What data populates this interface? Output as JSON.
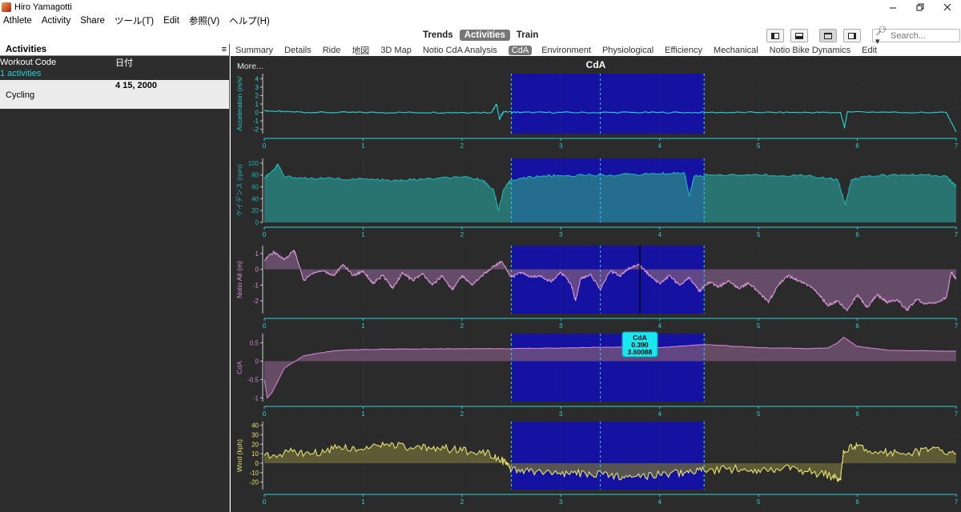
{
  "window": {
    "title": "Hiro Yamagotti",
    "icon": "app-logo-icon",
    "controls": [
      "minimize-icon",
      "restore-icon",
      "close-icon"
    ]
  },
  "menu": [
    "Athlete",
    "Activity",
    "Share",
    "ツール(T)",
    "Edit",
    "参照(V)",
    "ヘルプ(H)"
  ],
  "views": {
    "tabs": [
      "Trends",
      "Activities",
      "Train"
    ],
    "active": "Activities"
  },
  "toolbar": {
    "buttons": [
      "sidebar-toggle-icon",
      "bottom-panel-icon",
      "tile-view-icon",
      "tab-view-icon"
    ],
    "search_placeholder": "Search...",
    "search_icon": "search-icon"
  },
  "sidebar": {
    "title": "Activities",
    "menu_glyph": "≡",
    "col_workout": "Workout Code",
    "col_date": "日付",
    "count": "1 activities",
    "row": {
      "date": "4 15, 2000",
      "sport": "Cycling"
    }
  },
  "chart_tabs": {
    "items": [
      "Summary",
      "Details",
      "Ride",
      "地図",
      "3D Map",
      "Notio CdA Analysis",
      "CdA",
      "Environment",
      "Physiological",
      "Efficiency",
      "Mechanical",
      "Notio Bike Dynamics",
      "Edit"
    ],
    "active": "CdA"
  },
  "chart": {
    "more": "More...",
    "title": "CdA",
    "tooltip": {
      "line1": "CdA",
      "line2": "0.390",
      "line3": "3.60088"
    }
  },
  "chart_data": {
    "type": "area",
    "x_range": [
      0,
      7
    ],
    "x_ticks": [
      0,
      1,
      2,
      3,
      4,
      5,
      6,
      7
    ],
    "selection": {
      "start": 2.5,
      "end": 4.45,
      "markers": [
        2.5,
        3.4,
        4.45
      ]
    },
    "cursor_x": 3.8,
    "series": [
      {
        "name": "Acceleration (m/s/",
        "ylim": [
          -2.5,
          4.6
        ],
        "y_ticks": [
          4,
          3,
          2,
          1,
          0,
          -1,
          -2
        ],
        "color": "#2ad4d4",
        "fill": false,
        "points": [
          [
            0,
            0.2
          ],
          [
            0.2,
            0.1
          ],
          [
            0.5,
            0.0
          ],
          [
            1.0,
            0.0
          ],
          [
            1.5,
            0.0
          ],
          [
            2.0,
            0.0
          ],
          [
            2.3,
            0.0
          ],
          [
            2.35,
            1.0
          ],
          [
            2.38,
            -0.8
          ],
          [
            2.42,
            0.1
          ],
          [
            2.6,
            0.0
          ],
          [
            3.0,
            0.0
          ],
          [
            3.5,
            0.0
          ],
          [
            4.0,
            0.0
          ],
          [
            4.5,
            0.0
          ],
          [
            5.0,
            0.0
          ],
          [
            5.5,
            0.0
          ],
          [
            5.83,
            0.0
          ],
          [
            5.87,
            -1.8
          ],
          [
            5.9,
            0.1
          ],
          [
            6.5,
            0.0
          ],
          [
            6.9,
            0.0
          ],
          [
            7.0,
            -2.3
          ]
        ]
      },
      {
        "name": "ケイデンス (rpm)",
        "ylim": [
          0,
          108
        ],
        "y_ticks": [
          100,
          80,
          60,
          40,
          20,
          0
        ],
        "color": "#20b4b4",
        "fill": true,
        "fill_color": "#2a8c88",
        "points": [
          [
            0,
            75
          ],
          [
            0.1,
            90
          ],
          [
            0.14,
            98
          ],
          [
            0.2,
            77
          ],
          [
            0.5,
            74
          ],
          [
            1.0,
            73
          ],
          [
            1.3,
            70
          ],
          [
            1.6,
            73
          ],
          [
            2.0,
            76
          ],
          [
            2.2,
            72
          ],
          [
            2.32,
            55
          ],
          [
            2.37,
            20
          ],
          [
            2.42,
            55
          ],
          [
            2.5,
            72
          ],
          [
            2.8,
            78
          ],
          [
            3.0,
            79
          ],
          [
            3.5,
            80
          ],
          [
            4.0,
            82
          ],
          [
            4.25,
            84
          ],
          [
            4.3,
            45
          ],
          [
            4.35,
            78
          ],
          [
            4.5,
            80
          ],
          [
            5.0,
            80
          ],
          [
            5.5,
            79
          ],
          [
            5.8,
            72
          ],
          [
            5.88,
            30
          ],
          [
            5.94,
            72
          ],
          [
            6.1,
            78
          ],
          [
            6.5,
            80
          ],
          [
            6.9,
            78
          ],
          [
            7.0,
            60
          ]
        ]
      },
      {
        "name": "Notio Alt (m)",
        "ylim": [
          -2.8,
          1.5
        ],
        "y_ticks": [
          1.0,
          0.0,
          -1.0,
          -2.0
        ],
        "color": "#d898d8",
        "fill": true,
        "fill_color": "#7a5a80",
        "points": [
          [
            0,
            0.6
          ],
          [
            0.1,
            1.1
          ],
          [
            0.2,
            0.6
          ],
          [
            0.3,
            1.2
          ],
          [
            0.32,
            0.9
          ],
          [
            0.4,
            -0.7
          ],
          [
            0.5,
            -0.2
          ],
          [
            0.6,
            -0.1
          ],
          [
            0.7,
            -0.4
          ],
          [
            0.8,
            0.3
          ],
          [
            0.9,
            -0.4
          ],
          [
            1.0,
            -0.1
          ],
          [
            1.1,
            -0.9
          ],
          [
            1.2,
            -0.4
          ],
          [
            1.3,
            -1.2
          ],
          [
            1.4,
            -0.2
          ],
          [
            1.5,
            -0.7
          ],
          [
            1.6,
            -0.3
          ],
          [
            1.7,
            -1.0
          ],
          [
            1.8,
            -0.4
          ],
          [
            1.9,
            -1.3
          ],
          [
            2.0,
            -0.4
          ],
          [
            2.1,
            -1.0
          ],
          [
            2.2,
            -0.4
          ],
          [
            2.3,
            0.1
          ],
          [
            2.4,
            0.5
          ],
          [
            2.5,
            -0.5
          ],
          [
            2.6,
            -0.2
          ],
          [
            2.7,
            -0.5
          ],
          [
            2.8,
            -0.4
          ],
          [
            2.9,
            -0.8
          ],
          [
            3.0,
            -0.2
          ],
          [
            3.1,
            -0.9
          ],
          [
            3.15,
            -2.0
          ],
          [
            3.2,
            -0.6
          ],
          [
            3.3,
            -0.3
          ],
          [
            3.4,
            -1.3
          ],
          [
            3.5,
            -0.1
          ],
          [
            3.6,
            -0.4
          ],
          [
            3.7,
            0.1
          ],
          [
            3.8,
            0.3
          ],
          [
            3.9,
            -0.4
          ],
          [
            4.0,
            -0.9
          ],
          [
            4.1,
            -0.4
          ],
          [
            4.2,
            -1.0
          ],
          [
            4.3,
            -0.5
          ],
          [
            4.4,
            -1.4
          ],
          [
            4.5,
            -0.8
          ],
          [
            4.6,
            -1.1
          ],
          [
            4.7,
            -0.7
          ],
          [
            4.8,
            -1.2
          ],
          [
            4.9,
            -0.9
          ],
          [
            5.0,
            -1.4
          ],
          [
            5.1,
            -2.1
          ],
          [
            5.2,
            -1.0
          ],
          [
            5.3,
            -0.4
          ],
          [
            5.4,
            -0.7
          ],
          [
            5.5,
            -1.0
          ],
          [
            5.6,
            -1.5
          ],
          [
            5.7,
            -2.3
          ],
          [
            5.8,
            -2.0
          ],
          [
            5.9,
            -2.6
          ],
          [
            6.0,
            -1.6
          ],
          [
            6.1,
            -2.4
          ],
          [
            6.2,
            -1.6
          ],
          [
            6.3,
            -2.1
          ],
          [
            6.4,
            -1.9
          ],
          [
            6.5,
            -2.6
          ],
          [
            6.6,
            -1.9
          ],
          [
            6.7,
            -2.2
          ],
          [
            6.8,
            -2.1
          ],
          [
            6.9,
            -1.8
          ],
          [
            6.95,
            -0.2
          ],
          [
            7.0,
            -0.6
          ]
        ]
      },
      {
        "name": "CdA",
        "ylim": [
          -1.1,
          0.75
        ],
        "y_ticks": [
          0.5,
          0.0,
          -0.5,
          -1.0
        ],
        "color": "#d080d0",
        "fill": true,
        "fill_color": "#7a5878",
        "points": [
          [
            0,
            -0.5
          ],
          [
            0.03,
            -1.0
          ],
          [
            0.08,
            -0.85
          ],
          [
            0.2,
            -0.2
          ],
          [
            0.4,
            0.15
          ],
          [
            0.7,
            0.28
          ],
          [
            1.0,
            0.32
          ],
          [
            1.5,
            0.33
          ],
          [
            2.0,
            0.34
          ],
          [
            2.5,
            0.34
          ],
          [
            3.0,
            0.36
          ],
          [
            3.5,
            0.38
          ],
          [
            3.8,
            0.39
          ],
          [
            4.0,
            0.37
          ],
          [
            4.45,
            0.45
          ],
          [
            4.8,
            0.4
          ],
          [
            5.0,
            0.37
          ],
          [
            5.5,
            0.34
          ],
          [
            5.7,
            0.36
          ],
          [
            5.8,
            0.5
          ],
          [
            5.86,
            0.65
          ],
          [
            6.0,
            0.4
          ],
          [
            6.3,
            0.3
          ],
          [
            7.0,
            0.27
          ]
        ]
      },
      {
        "name": "Wind (kph)",
        "ylim": [
          -28,
          44
        ],
        "y_ticks": [
          40,
          30,
          20,
          10,
          0,
          -10,
          -20
        ],
        "color": "#e6e270",
        "fill": true,
        "fill_color": "#6e6c3a",
        "points": [
          [
            0,
            8
          ],
          [
            0.25,
            12
          ],
          [
            0.5,
            10
          ],
          [
            0.75,
            18
          ],
          [
            1.0,
            14
          ],
          [
            1.25,
            20
          ],
          [
            1.5,
            15
          ],
          [
            1.75,
            17
          ],
          [
            2.0,
            13
          ],
          [
            2.25,
            12
          ],
          [
            2.4,
            4
          ],
          [
            2.5,
            -8
          ],
          [
            2.75,
            -9
          ],
          [
            3.0,
            -12
          ],
          [
            3.25,
            -11
          ],
          [
            3.5,
            -13
          ],
          [
            3.75,
            -14
          ],
          [
            4.0,
            -12
          ],
          [
            4.25,
            -10
          ],
          [
            4.45,
            -8
          ],
          [
            4.75,
            -6
          ],
          [
            5.0,
            -7
          ],
          [
            5.25,
            -5
          ],
          [
            5.5,
            -9
          ],
          [
            5.75,
            -14
          ],
          [
            5.83,
            -18
          ],
          [
            5.86,
            14
          ],
          [
            6.0,
            18
          ],
          [
            6.25,
            12
          ],
          [
            6.5,
            9
          ],
          [
            6.75,
            15
          ],
          [
            7.0,
            10
          ]
        ]
      }
    ]
  }
}
